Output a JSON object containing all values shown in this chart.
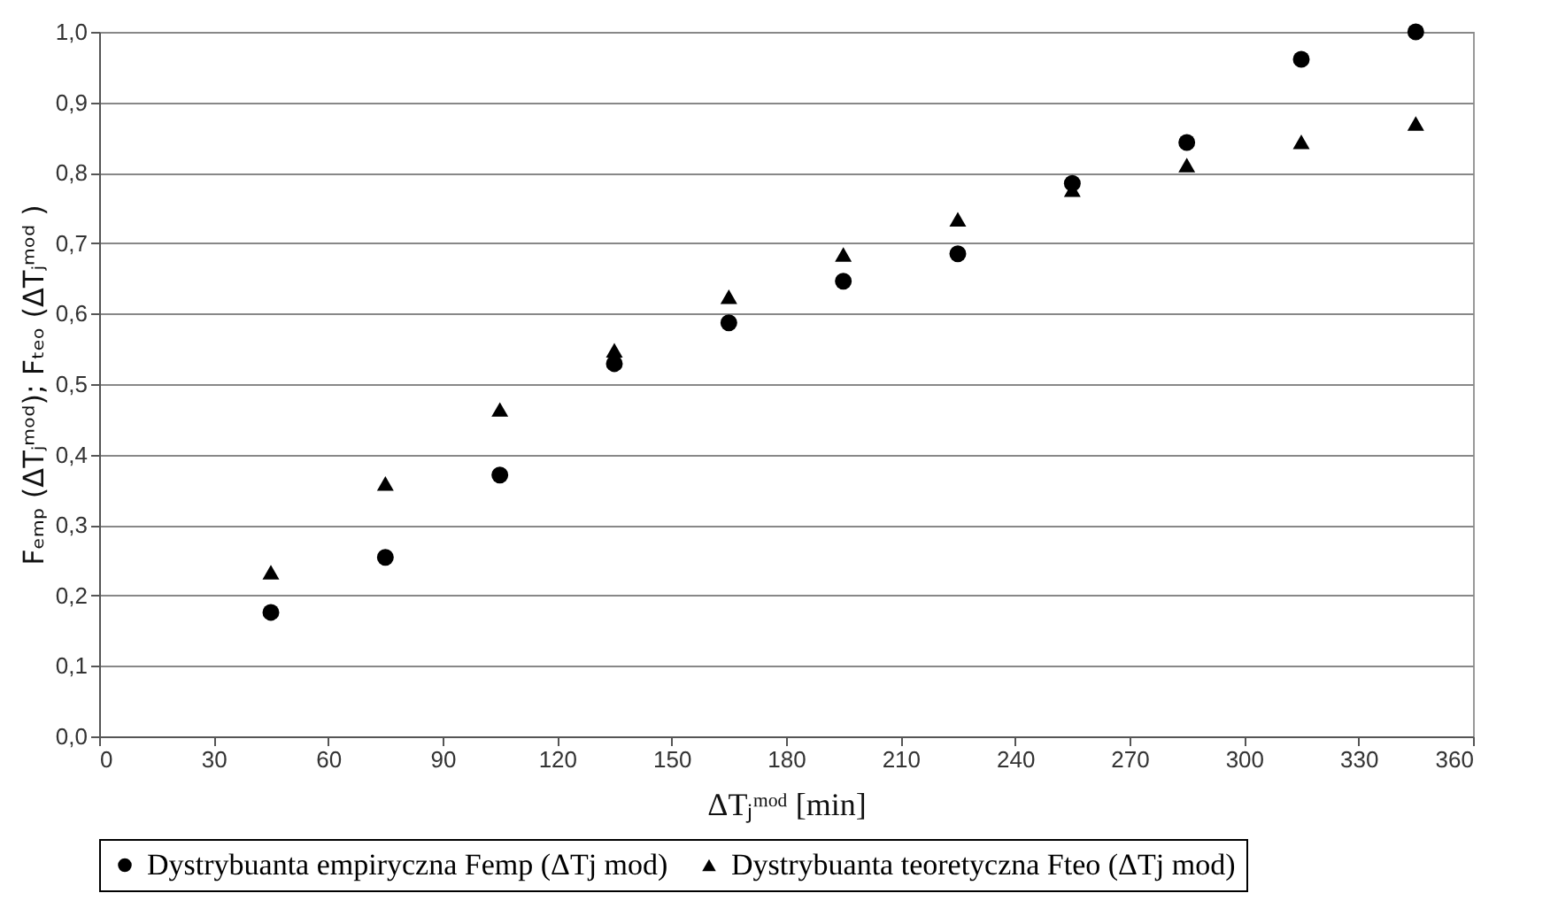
{
  "chart_data": {
    "type": "scatter",
    "xlabel": "ΔTⱼᵐᵒᵈ [min]",
    "ylabel": "Fₑₘₚ (ΔTⱼᵐᵒᵈ); Fₜₑₒ (ΔTⱼᵐᵒᵈ )",
    "x": [
      45,
      75,
      105,
      135,
      165,
      195,
      225,
      255,
      285,
      315,
      345
    ],
    "series": [
      {
        "name": "Dystrybuanta empiryczna Femp (ΔTj mod)",
        "color": "#000000",
        "marker": "circle",
        "values": [
          0.176,
          0.254,
          0.371,
          0.529,
          0.587,
          0.646,
          0.685,
          0.785,
          0.843,
          0.961,
          1.0
        ]
      },
      {
        "name": "Dystrybuanta teoretyczna Fteo (ΔTj mod)",
        "color": "#000000",
        "marker": "triangle",
        "values": [
          0.233,
          0.359,
          0.464,
          0.548,
          0.624,
          0.684,
          0.734,
          0.776,
          0.811,
          0.844,
          0.87
        ]
      }
    ],
    "xlim": [
      0,
      360
    ],
    "xticks": [
      0,
      30,
      60,
      90,
      120,
      150,
      180,
      210,
      240,
      270,
      300,
      330,
      360
    ],
    "ylim": [
      0,
      1
    ],
    "yticks": [
      {
        "value": 0,
        "label": "0,0"
      },
      {
        "value": 0.1,
        "label": "0,1"
      },
      {
        "value": 0.2,
        "label": "0,2"
      },
      {
        "value": 0.3,
        "label": "0,3"
      },
      {
        "value": 0.4,
        "label": "0,4"
      },
      {
        "value": 0.5,
        "label": "0,5"
      },
      {
        "value": 0.6,
        "label": "0,6"
      },
      {
        "value": 0.7,
        "label": "0,7"
      },
      {
        "value": 0.8,
        "label": "0,8"
      },
      {
        "value": 0.9,
        "label": "0,9"
      },
      {
        "value": 1,
        "label": "1,0"
      }
    ],
    "grid": "y",
    "legend": "bottom"
  }
}
